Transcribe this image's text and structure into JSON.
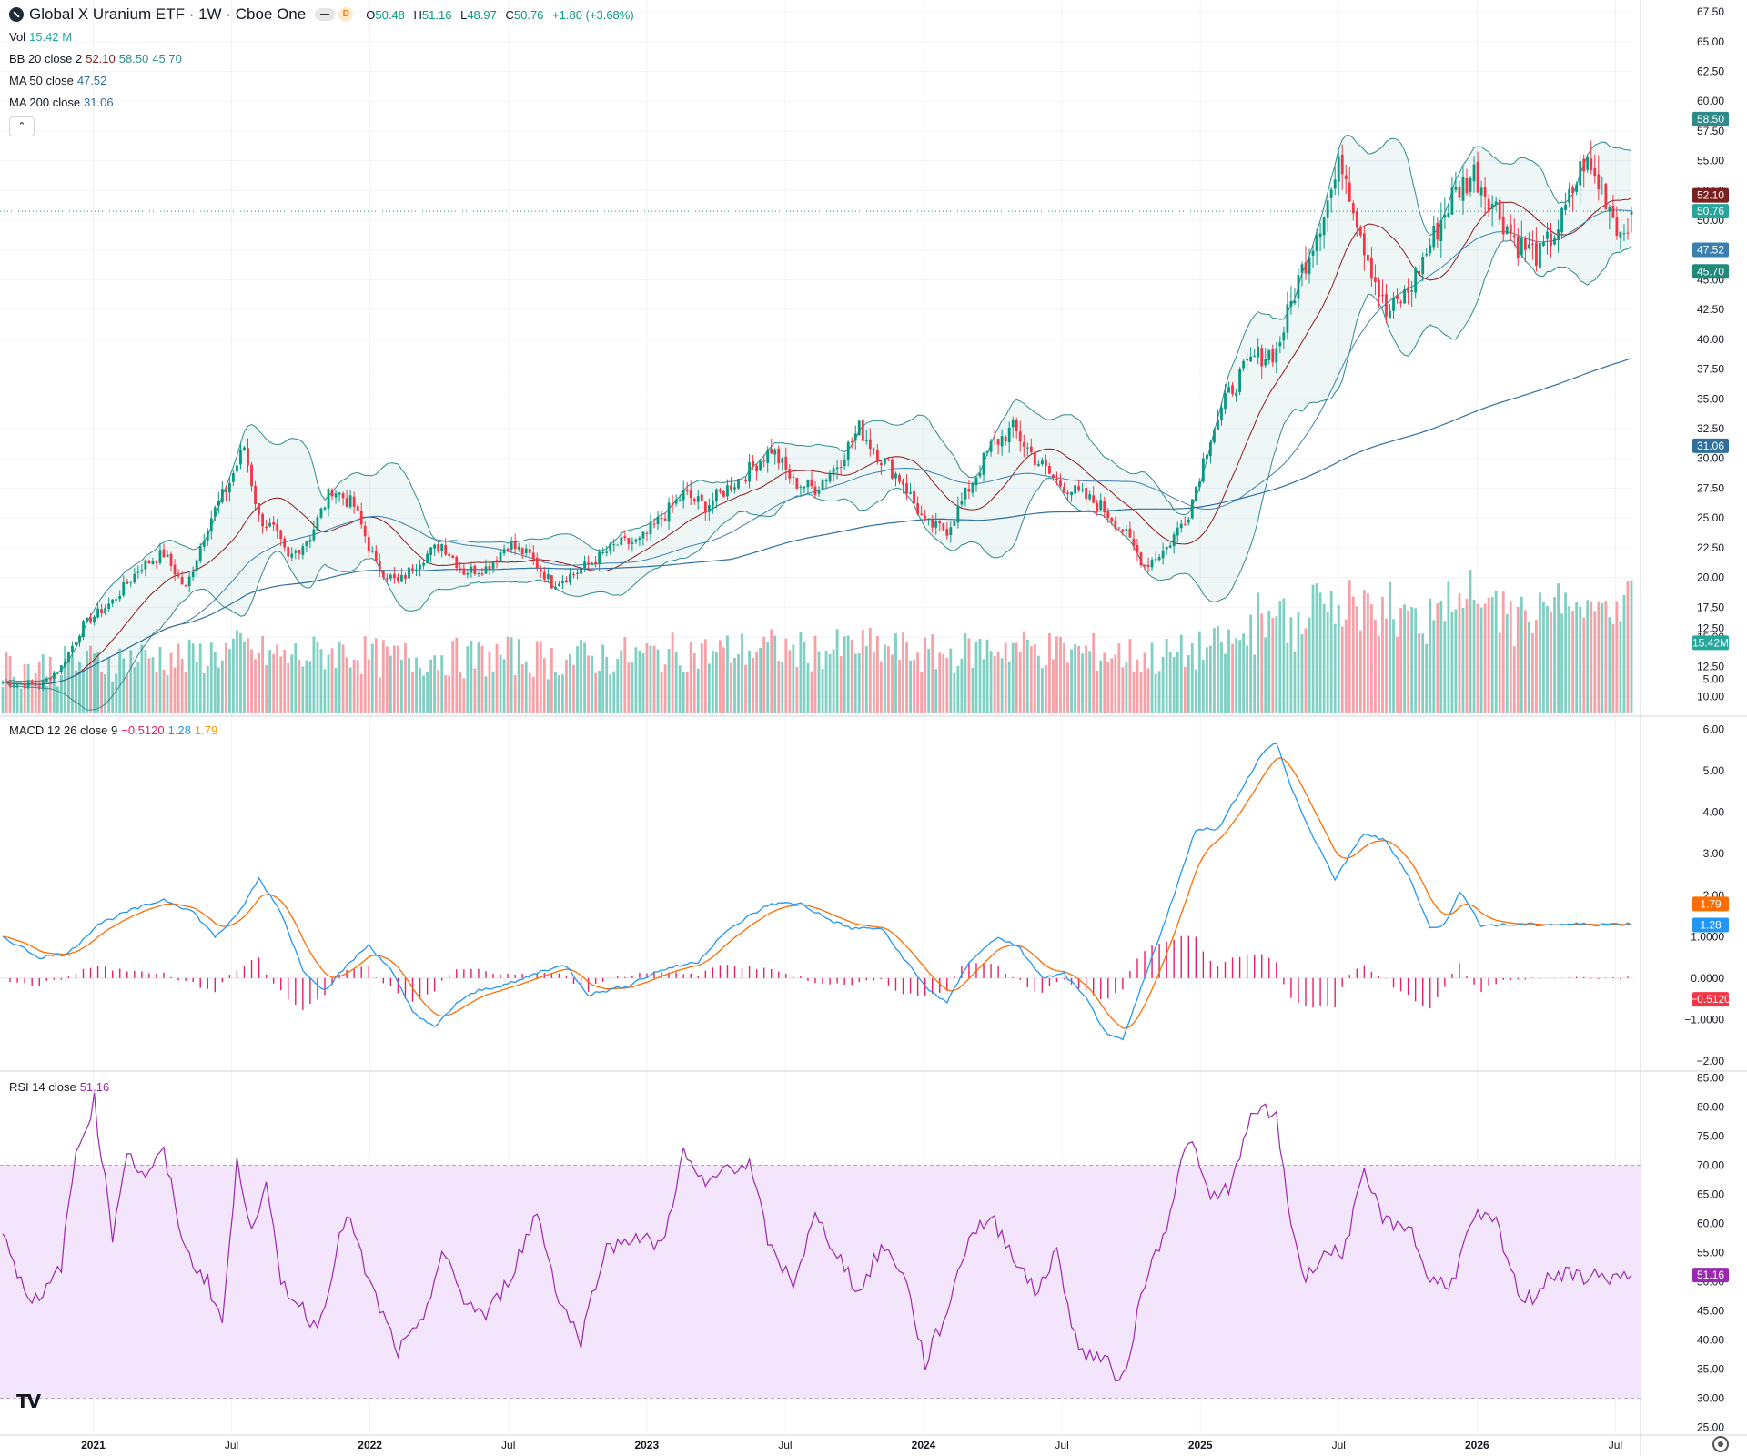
{
  "header": {
    "title": "Global X Uranium ETF · 1W · Cboe One",
    "interval_badge": "D",
    "ohlc": {
      "o_label": "O",
      "o": "50.48",
      "h_label": "H",
      "h": "51.16",
      "l_label": "L",
      "l": "48.97",
      "c_label": "C",
      "c": "50.76",
      "change": "+1.80 (+3.68%)"
    }
  },
  "legends": {
    "vol": {
      "label": "Vol",
      "value": "15.42 M"
    },
    "bb": {
      "label": "BB 20 close 2",
      "basis": "52.10",
      "upper": "58.50",
      "lower": "45.70"
    },
    "ma50": {
      "label": "MA 50 close",
      "value": "47.52"
    },
    "ma200": {
      "label": "MA 200 close",
      "value": "31.06"
    },
    "macd": {
      "label": "MACD 12 26 close 9",
      "hist": "−0.5120",
      "macd": "1.28",
      "signal": "1.79"
    },
    "rsi": {
      "label": "RSI 14 close",
      "value": "51.16"
    }
  },
  "colors": {
    "up": "#089981",
    "down": "#f23645",
    "bb": "#2e8b8b",
    "basis": "#8b1a1a",
    "ma50": "#2962ff",
    "ma200": "#2f6fa0",
    "macd": "#2196f3",
    "signal": "#ff6d00",
    "hist": "#e91e63",
    "rsi": "#9c27b0",
    "vol_up": "#7fcfc2",
    "vol_down": "#f7a1a7"
  },
  "chart_data": {
    "type": "candlestick",
    "x_ticks": [
      "2021",
      "Jul",
      "2022",
      "Jul",
      "2023",
      "Jul",
      "2024",
      "Jul",
      "2025",
      "Jul",
      "2026",
      "Jul"
    ],
    "price_axis": {
      "ticks": [
        "67.50",
        "65.00",
        "62.50",
        "60.00",
        "57.50",
        "55.00",
        "52.50",
        "50.00",
        "47.50",
        "45.00",
        "42.50",
        "40.00",
        "37.50",
        "35.00",
        "32.50",
        "30.00",
        "27.50",
        "25.00",
        "22.50",
        "20.00",
        "17.50",
        "15.00",
        "12.50",
        "10.00"
      ],
      "ylim": [
        8.5,
        68.5
      ]
    },
    "volume_axis": {
      "ticks": [
        "12.50",
        "10.00",
        "5.00"
      ],
      "ylim": [
        0,
        30
      ]
    },
    "macd_axis": {
      "ticks": [
        "6.00",
        "5.00",
        "4.00",
        "3.00",
        "2.00",
        "1.0000",
        "0.0000",
        "−1.0000",
        "−2.00"
      ],
      "ylim": [
        -2.2,
        6.3
      ]
    },
    "rsi_axis": {
      "ticks": [
        "85.00",
        "80.00",
        "75.00",
        "70.00",
        "65.00",
        "60.00",
        "55.00",
        "50.00",
        "45.00",
        "40.00",
        "35.00",
        "30.00",
        "25.00"
      ],
      "ylim": [
        24,
        86
      ],
      "bands": [
        30,
        70
      ]
    },
    "last_labels": {
      "upper": "58.50",
      "basis": "52.10",
      "close": "50.76",
      "ma50": "47.52",
      "lower": "45.70",
      "ma200": "31.06",
      "volume": "15.42M",
      "signal": "1.79",
      "macd": "1.28",
      "hist": "−0.5120",
      "rsi": "51.16"
    },
    "price_anchors": [
      [
        0,
        11.2
      ],
      [
        10,
        10.9
      ],
      [
        16,
        12.5
      ],
      [
        22,
        16
      ],
      [
        30,
        18
      ],
      [
        38,
        21
      ],
      [
        44,
        22
      ],
      [
        50,
        19
      ],
      [
        56,
        24.5
      ],
      [
        62,
        28
      ],
      [
        66,
        31
      ],
      [
        70,
        25
      ],
      [
        74,
        24
      ],
      [
        78,
        21.5
      ],
      [
        84,
        23.5
      ],
      [
        90,
        27.5
      ],
      [
        96,
        26
      ],
      [
        102,
        21
      ],
      [
        108,
        19.5
      ],
      [
        114,
        21.5
      ],
      [
        120,
        22.8
      ],
      [
        126,
        20.5
      ],
      [
        132,
        20.8
      ],
      [
        138,
        22.8
      ],
      [
        144,
        21.8
      ],
      [
        150,
        19.5
      ],
      [
        156,
        20.3
      ],
      [
        162,
        21.5
      ],
      [
        168,
        22.8
      ],
      [
        174,
        23
      ],
      [
        180,
        25
      ],
      [
        186,
        27
      ],
      [
        192,
        26
      ],
      [
        198,
        27.5
      ],
      [
        204,
        29
      ],
      [
        210,
        30.8
      ],
      [
        216,
        28
      ],
      [
        222,
        27.5
      ],
      [
        228,
        29.5
      ],
      [
        234,
        32.5
      ],
      [
        240,
        30
      ],
      [
        246,
        28
      ],
      [
        252,
        24.5
      ],
      [
        258,
        24
      ],
      [
        264,
        27.5
      ],
      [
        270,
        31
      ],
      [
        276,
        32.5
      ],
      [
        282,
        30
      ],
      [
        288,
        28
      ],
      [
        294,
        27
      ],
      [
        300,
        26
      ],
      [
        306,
        24
      ],
      [
        312,
        21
      ],
      [
        318,
        22.5
      ],
      [
        324,
        25.5
      ],
      [
        330,
        32
      ],
      [
        336,
        36
      ],
      [
        342,
        38.5
      ],
      [
        348,
        39
      ],
      [
        354,
        45
      ],
      [
        360,
        50
      ],
      [
        366,
        55
      ],
      [
        372,
        48
      ],
      [
        378,
        42
      ],
      [
        384,
        44
      ],
      [
        390,
        48
      ],
      [
        396,
        52
      ],
      [
        402,
        54
      ],
      [
        408,
        51
      ],
      [
        414,
        48
      ],
      [
        420,
        47
      ],
      [
        426,
        50
      ],
      [
        432,
        55
      ],
      [
        438,
        52
      ],
      [
        442,
        48.97
      ],
      [
        445,
        50.76
      ]
    ],
    "rsi_anchors": [
      [
        0,
        59
      ],
      [
        5,
        50
      ],
      [
        10,
        46
      ],
      [
        16,
        53
      ],
      [
        20,
        72
      ],
      [
        25,
        81
      ],
      [
        30,
        58
      ],
      [
        34,
        73
      ],
      [
        38,
        68
      ],
      [
        44,
        72
      ],
      [
        50,
        55
      ],
      [
        56,
        50
      ],
      [
        60,
        43
      ],
      [
        64,
        70
      ],
      [
        68,
        60
      ],
      [
        72,
        66
      ],
      [
        76,
        50
      ],
      [
        80,
        47
      ],
      [
        86,
        42
      ],
      [
        94,
        62
      ],
      [
        100,
        50
      ],
      [
        108,
        38
      ],
      [
        114,
        42
      ],
      [
        120,
        55
      ],
      [
        126,
        47
      ],
      [
        132,
        44
      ],
      [
        138,
        50
      ],
      [
        146,
        62
      ],
      [
        152,
        47
      ],
      [
        158,
        40
      ],
      [
        164,
        55
      ],
      [
        172,
        58
      ],
      [
        180,
        56
      ],
      [
        186,
        72
      ],
      [
        192,
        66
      ],
      [
        198,
        70
      ],
      [
        204,
        70
      ],
      [
        210,
        55
      ],
      [
        216,
        50
      ],
      [
        222,
        61
      ],
      [
        228,
        55
      ],
      [
        234,
        48
      ],
      [
        240,
        56
      ],
      [
        246,
        52
      ],
      [
        252,
        36
      ],
      [
        258,
        45
      ],
      [
        264,
        58
      ],
      [
        270,
        61
      ],
      [
        276,
        55
      ],
      [
        282,
        48
      ],
      [
        288,
        55
      ],
      [
        294,
        38
      ],
      [
        300,
        37
      ],
      [
        306,
        33
      ],
      [
        312,
        50
      ],
      [
        318,
        60
      ],
      [
        324,
        75
      ],
      [
        330,
        64
      ],
      [
        336,
        67
      ],
      [
        342,
        80
      ],
      [
        348,
        78
      ],
      [
        352,
        60
      ],
      [
        356,
        50
      ],
      [
        360,
        55
      ],
      [
        366,
        55
      ],
      [
        372,
        68
      ],
      [
        378,
        60
      ],
      [
        384,
        60
      ],
      [
        390,
        50
      ],
      [
        396,
        50
      ],
      [
        402,
        61
      ],
      [
        408,
        60
      ],
      [
        414,
        48
      ],
      [
        418,
        47
      ],
      [
        422,
        51.16
      ]
    ],
    "macd_anchors": [
      [
        0,
        1.0
      ],
      [
        10,
        0.5
      ],
      [
        18,
        0.6
      ],
      [
        26,
        1.3
      ],
      [
        34,
        1.6
      ],
      [
        44,
        1.9
      ],
      [
        52,
        1.6
      ],
      [
        58,
        1.0
      ],
      [
        64,
        1.5
      ],
      [
        70,
        2.4
      ],
      [
        76,
        1.6
      ],
      [
        82,
        0.2
      ],
      [
        88,
        -0.3
      ],
      [
        94,
        0.3
      ],
      [
        100,
        0.8
      ],
      [
        106,
        0.2
      ],
      [
        112,
        -0.8
      ],
      [
        118,
        -1.2
      ],
      [
        124,
        -0.6
      ],
      [
        130,
        -0.3
      ],
      [
        140,
        -0.1
      ],
      [
        148,
        0.2
      ],
      [
        154,
        0.3
      ],
      [
        160,
        -0.4
      ],
      [
        170,
        -0.2
      ],
      [
        180,
        0.2
      ],
      [
        190,
        0.4
      ],
      [
        196,
        1.0
      ],
      [
        204,
        1.5
      ],
      [
        210,
        1.8
      ],
      [
        218,
        1.8
      ],
      [
        226,
        1.4
      ],
      [
        232,
        1.2
      ],
      [
        240,
        1.2
      ],
      [
        246,
        0.5
      ],
      [
        252,
        -0.2
      ],
      [
        258,
        -0.6
      ],
      [
        264,
        0.4
      ],
      [
        272,
        1.0
      ],
      [
        278,
        0.7
      ],
      [
        284,
        0.0
      ],
      [
        290,
        0.1
      ],
      [
        296,
        -0.5
      ],
      [
        302,
        -1.4
      ],
      [
        306,
        -1.5
      ],
      [
        314,
        0.5
      ],
      [
        320,
        2.0
      ],
      [
        326,
        3.6
      ],
      [
        332,
        3.6
      ],
      [
        338,
        4.5
      ],
      [
        344,
        5.4
      ],
      [
        348,
        5.7
      ],
      [
        352,
        4.6
      ],
      [
        358,
        3.4
      ],
      [
        364,
        2.4
      ],
      [
        372,
        3.5
      ],
      [
        378,
        3.3
      ],
      [
        384,
        2.5
      ],
      [
        390,
        1.2
      ],
      [
        394,
        1.3
      ],
      [
        398,
        2.1
      ],
      [
        404,
        1.28
      ]
    ],
    "n_bars": 446
  }
}
